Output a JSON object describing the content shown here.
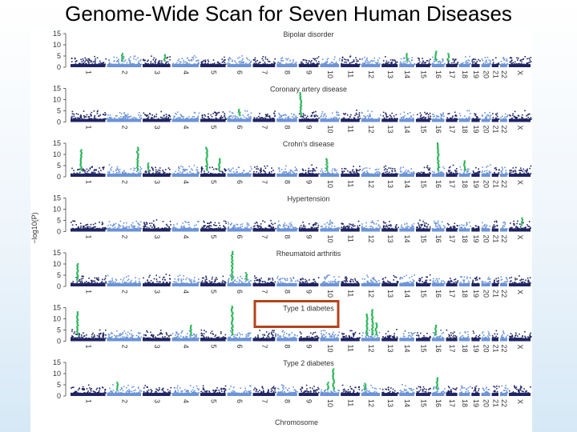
{
  "slide": {
    "title": "Genome-Wide Scan for Seven Human Diseases"
  },
  "colors": {
    "chrom_dark": "#1e2462",
    "chrom_light": "#6b93d6",
    "hit": "#2fb85c",
    "highlight_box": "#b5421b",
    "axis": "#444444"
  },
  "chart_data": {
    "type": "scatter",
    "subtype": "manhattan",
    "xlabel": "Chromosome",
    "ylabel": "−log10(P)",
    "ylim": [
      0,
      15
    ],
    "yticks": [
      0,
      5,
      10,
      15
    ],
    "chromosomes": [
      "1",
      "2",
      "3",
      "4",
      "5",
      "6",
      "7",
      "8",
      "9",
      "10",
      "11",
      "12",
      "13",
      "14",
      "15",
      "16",
      "17",
      "18",
      "19",
      "20",
      "21",
      "22",
      "X"
    ],
    "chromosome_relative_length": [
      249,
      243,
      198,
      191,
      181,
      171,
      159,
      146,
      141,
      136,
      135,
      134,
      115,
      107,
      102,
      90,
      81,
      78,
      59,
      63,
      48,
      51,
      155
    ],
    "baseline_max_neglog10p": 5,
    "highlighted_panel": "Type 1 diabetes",
    "panels": [
      {
        "name": "Bipolar disorder",
        "hits": [
          {
            "chr": "2",
            "pos": 0.45,
            "y": 6
          },
          {
            "chr": "3",
            "pos": 0.8,
            "y": 5.5
          },
          {
            "chr": "14",
            "pos": 0.5,
            "y": 6
          },
          {
            "chr": "16",
            "pos": 0.3,
            "y": 7
          },
          {
            "chr": "17",
            "pos": 0.2,
            "y": 6
          }
        ]
      },
      {
        "name": "Coronary artery disease",
        "hits": [
          {
            "chr": "9",
            "pos": 0.1,
            "y": 13
          },
          {
            "chr": "6",
            "pos": 0.5,
            "y": 5.5
          }
        ]
      },
      {
        "name": "Crohn's disease",
        "hits": [
          {
            "chr": "1",
            "pos": 0.3,
            "y": 12
          },
          {
            "chr": "2",
            "pos": 0.9,
            "y": 13
          },
          {
            "chr": "3",
            "pos": 0.2,
            "y": 6
          },
          {
            "chr": "5",
            "pos": 0.25,
            "y": 13
          },
          {
            "chr": "5",
            "pos": 0.75,
            "y": 8
          },
          {
            "chr": "10",
            "pos": 0.35,
            "y": 8
          },
          {
            "chr": "16",
            "pos": 0.5,
            "y": 15
          },
          {
            "chr": "18",
            "pos": 0.5,
            "y": 7
          }
        ]
      },
      {
        "name": "Hypertension",
        "hits": [
          {
            "chr": "X",
            "pos": 0.6,
            "y": 6
          }
        ]
      },
      {
        "name": "Rheumatoid arthritis",
        "hits": [
          {
            "chr": "1",
            "pos": 0.2,
            "y": 10
          },
          {
            "chr": "6",
            "pos": 0.2,
            "y": 15.5
          },
          {
            "chr": "6",
            "pos": 0.8,
            "y": 6
          }
        ]
      },
      {
        "name": "Type 1 diabetes",
        "hits": [
          {
            "chr": "1",
            "pos": 0.2,
            "y": 13
          },
          {
            "chr": "6",
            "pos": 0.2,
            "y": 15.5
          },
          {
            "chr": "4",
            "pos": 0.7,
            "y": 7
          },
          {
            "chr": "12",
            "pos": 0.3,
            "y": 12
          },
          {
            "chr": "12",
            "pos": 0.6,
            "y": 14
          },
          {
            "chr": "12",
            "pos": 0.8,
            "y": 8
          },
          {
            "chr": "16",
            "pos": 0.3,
            "y": 7
          }
        ]
      },
      {
        "name": "Type 2 diabetes",
        "hits": [
          {
            "chr": "10",
            "pos": 0.7,
            "y": 12
          },
          {
            "chr": "10",
            "pos": 0.4,
            "y": 6
          },
          {
            "chr": "12",
            "pos": 0.2,
            "y": 5.5
          },
          {
            "chr": "16",
            "pos": 0.4,
            "y": 8
          },
          {
            "chr": "2",
            "pos": 0.3,
            "y": 6
          }
        ]
      }
    ]
  }
}
